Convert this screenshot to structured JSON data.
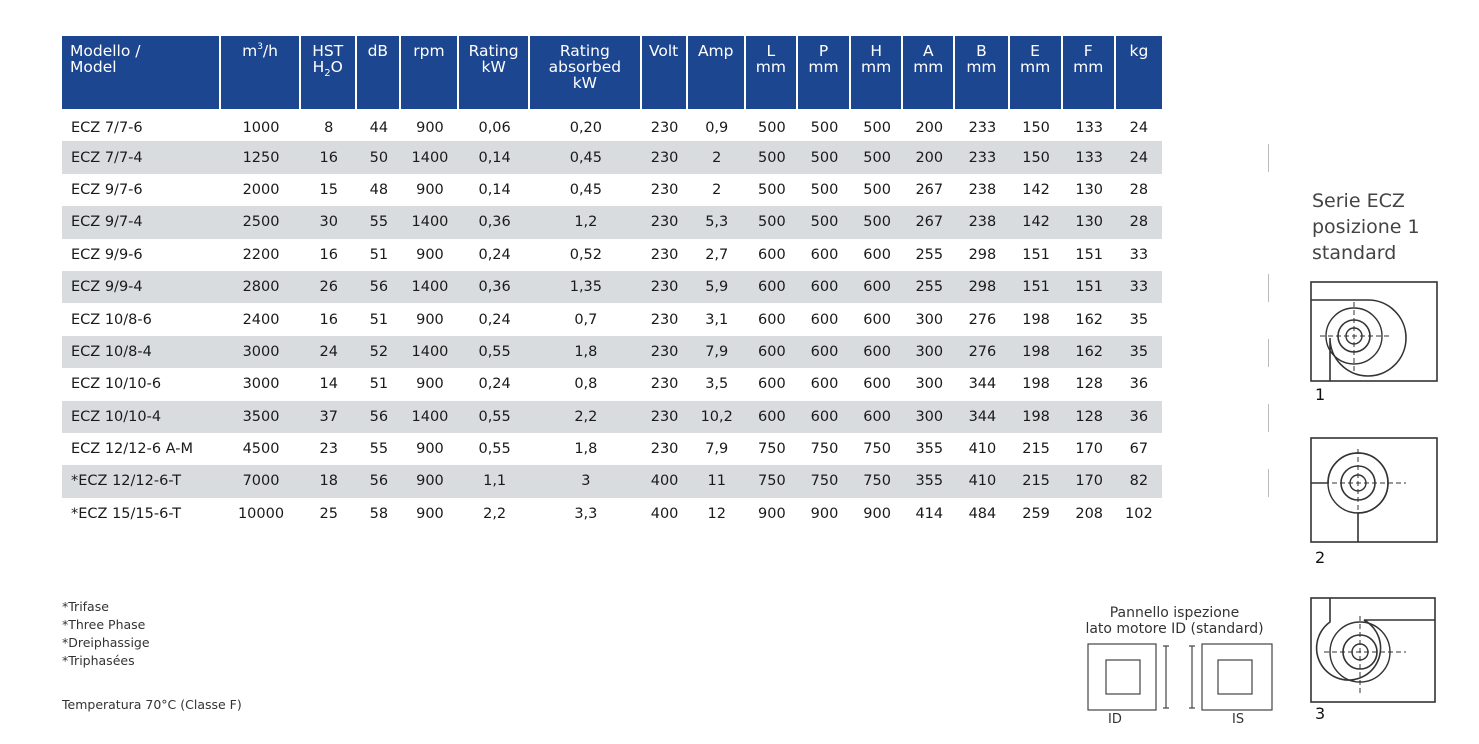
{
  "table": {
    "headers": {
      "model": [
        "Modello /",
        "Model"
      ],
      "flow_base": "m",
      "flow_sup": "3",
      "flow_tail": "/h",
      "hst_1": "HST",
      "hst_2a": "H",
      "hst_2sub": "2",
      "hst_2b": "O",
      "db": "dB",
      "rpm": "rpm",
      "rating": [
        "Rating",
        "kW"
      ],
      "absorbed": [
        "Rating",
        "absorbed",
        "kW"
      ],
      "volt": "Volt",
      "amp": "Amp",
      "l": [
        "L",
        "mm"
      ],
      "p": [
        "P",
        "mm"
      ],
      "h": [
        "H",
        "mm"
      ],
      "a": [
        "A",
        "mm"
      ],
      "b": [
        "B",
        "mm"
      ],
      "e": [
        "E",
        "mm"
      ],
      "f": [
        "F",
        "mm"
      ],
      "kg": "kg"
    },
    "rows": [
      [
        "ECZ 7/7-6",
        "1000",
        "8",
        "44",
        "900",
        "0,06",
        "0,20",
        "230",
        "0,9",
        "500",
        "500",
        "500",
        "200",
        "233",
        "150",
        "133",
        "24"
      ],
      [
        "ECZ 7/7-4",
        "1250",
        "16",
        "50",
        "1400",
        "0,14",
        "0,45",
        "230",
        "2",
        "500",
        "500",
        "500",
        "200",
        "233",
        "150",
        "133",
        "24"
      ],
      [
        "ECZ 9/7-6",
        "2000",
        "15",
        "48",
        "900",
        "0,14",
        "0,45",
        "230",
        "2",
        "500",
        "500",
        "500",
        "267",
        "238",
        "142",
        "130",
        "28"
      ],
      [
        "ECZ 9/7-4",
        "2500",
        "30",
        "55",
        "1400",
        "0,36",
        "1,2",
        "230",
        "5,3",
        "500",
        "500",
        "500",
        "267",
        "238",
        "142",
        "130",
        "28"
      ],
      [
        "ECZ 9/9-6",
        "2200",
        "16",
        "51",
        "900",
        "0,24",
        "0,52",
        "230",
        "2,7",
        "600",
        "600",
        "600",
        "255",
        "298",
        "151",
        "151",
        "33"
      ],
      [
        "ECZ 9/9-4",
        "2800",
        "26",
        "56",
        "1400",
        "0,36",
        "1,35",
        "230",
        "5,9",
        "600",
        "600",
        "600",
        "255",
        "298",
        "151",
        "151",
        "33"
      ],
      [
        "ECZ 10/8-6",
        "2400",
        "16",
        "51",
        "900",
        "0,24",
        "0,7",
        "230",
        "3,1",
        "600",
        "600",
        "600",
        "300",
        "276",
        "198",
        "162",
        "35"
      ],
      [
        "ECZ 10/8-4",
        "3000",
        "24",
        "52",
        "1400",
        "0,55",
        "1,8",
        "230",
        "7,9",
        "600",
        "600",
        "600",
        "300",
        "276",
        "198",
        "162",
        "35"
      ],
      [
        "ECZ 10/10-6",
        "3000",
        "14",
        "51",
        "900",
        "0,24",
        "0,8",
        "230",
        "3,5",
        "600",
        "600",
        "600",
        "300",
        "344",
        "198",
        "128",
        "36"
      ],
      [
        "ECZ 10/10-4",
        "3500",
        "37",
        "56",
        "1400",
        "0,55",
        "2,2",
        "230",
        "10,2",
        "600",
        "600",
        "600",
        "300",
        "344",
        "198",
        "128",
        "36"
      ],
      [
        "ECZ 12/12-6 A-M",
        "4500",
        "23",
        "55",
        "900",
        "0,55",
        "1,8",
        "230",
        "7,9",
        "750",
        "750",
        "750",
        "355",
        "410",
        "215",
        "170",
        "67"
      ],
      [
        "*ECZ 12/12-6-T",
        "7000",
        "18",
        "56",
        "900",
        "1,1",
        "3",
        "400",
        "11",
        "750",
        "750",
        "750",
        "355",
        "410",
        "215",
        "170",
        "82"
      ],
      [
        "*ECZ 15/15-6-T",
        "10000",
        "25",
        "58",
        "900",
        "2,2",
        "3,3",
        "400",
        "12",
        "900",
        "900",
        "900",
        "414",
        "484",
        "259",
        "208",
        "102"
      ]
    ]
  },
  "notes": [
    "*Trifase",
    "*Three Phase",
    "*Dreiphassige",
    "*Triphasées"
  ],
  "temperature": "Temperatura 70°C (Classe F)",
  "serie": {
    "line1": "Serie ECZ",
    "line2": "posizione 1",
    "line3": "standard"
  },
  "positions": [
    "1",
    "2",
    "3"
  ],
  "panel": {
    "title_1": "Pannello ispezione",
    "title_2": "lato motore ID (standard)",
    "left_label": "ID",
    "right_label": "IS"
  },
  "colors": {
    "header_bg": "#1c4690",
    "row_shade": "#d9dcde"
  }
}
